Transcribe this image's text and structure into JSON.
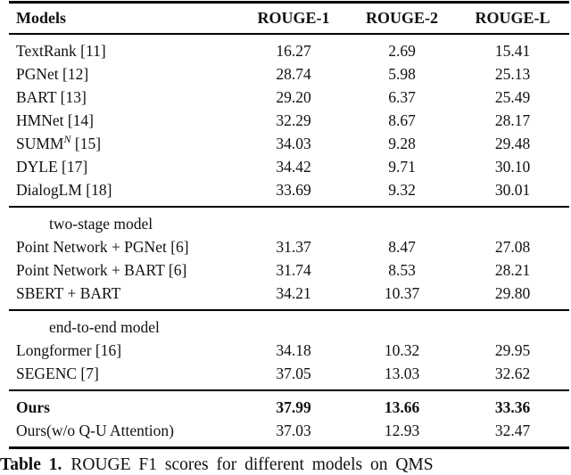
{
  "table": {
    "headers": [
      "Models",
      "ROUGE-1",
      "ROUGE-2",
      "ROUGE-L"
    ],
    "sections": [
      {
        "rows": [
          {
            "model": "TextRank [11]",
            "values": [
              "16.27",
              "2.69",
              "15.41"
            ]
          },
          {
            "model": "PGNet [12]",
            "values": [
              "28.74",
              "5.98",
              "25.13"
            ]
          },
          {
            "model": "BART [13]",
            "values": [
              "29.20",
              "6.37",
              "25.49"
            ]
          },
          {
            "model": "HMNet [14]",
            "values": [
              "32.29",
              "8.67",
              "28.17"
            ]
          },
          {
            "model": "SUMM",
            "sup": "N",
            "model_rest": " [15]",
            "values": [
              "34.03",
              "9.28",
              "29.48"
            ]
          },
          {
            "model": "DYLE [17]",
            "values": [
              "34.42",
              "9.71",
              "30.10"
            ]
          },
          {
            "model": "DialogLM [18]",
            "values": [
              "33.69",
              "9.32",
              "30.01"
            ]
          }
        ]
      },
      {
        "label": "two-stage model",
        "rows": [
          {
            "model": "Point Network + PGNet [6]",
            "values": [
              "31.37",
              "8.47",
              "27.08"
            ]
          },
          {
            "model": "Point Network + BART [6]",
            "values": [
              "31.74",
              "8.53",
              "28.21"
            ]
          },
          {
            "model": "SBERT + BART",
            "values": [
              "34.21",
              "10.37",
              "29.80"
            ]
          }
        ]
      },
      {
        "label": "end-to-end model",
        "rows": [
          {
            "model": "Longformer [16]",
            "values": [
              "34.18",
              "10.32",
              "29.95"
            ]
          },
          {
            "model": "SEGENC [7]",
            "values": [
              "37.05",
              "13.03",
              "32.62"
            ]
          }
        ]
      },
      {
        "rows": [
          {
            "model": "Ours",
            "bold": true,
            "values": [
              "37.99",
              "13.66",
              "33.36"
            ]
          },
          {
            "model": "Ours(w/o Q-U Attention)",
            "values": [
              "37.03",
              "12.93",
              "32.47"
            ]
          }
        ]
      }
    ]
  },
  "caption": {
    "label": "Table 1.",
    "text": "ROUGE F1 scores for different models on QMS"
  }
}
